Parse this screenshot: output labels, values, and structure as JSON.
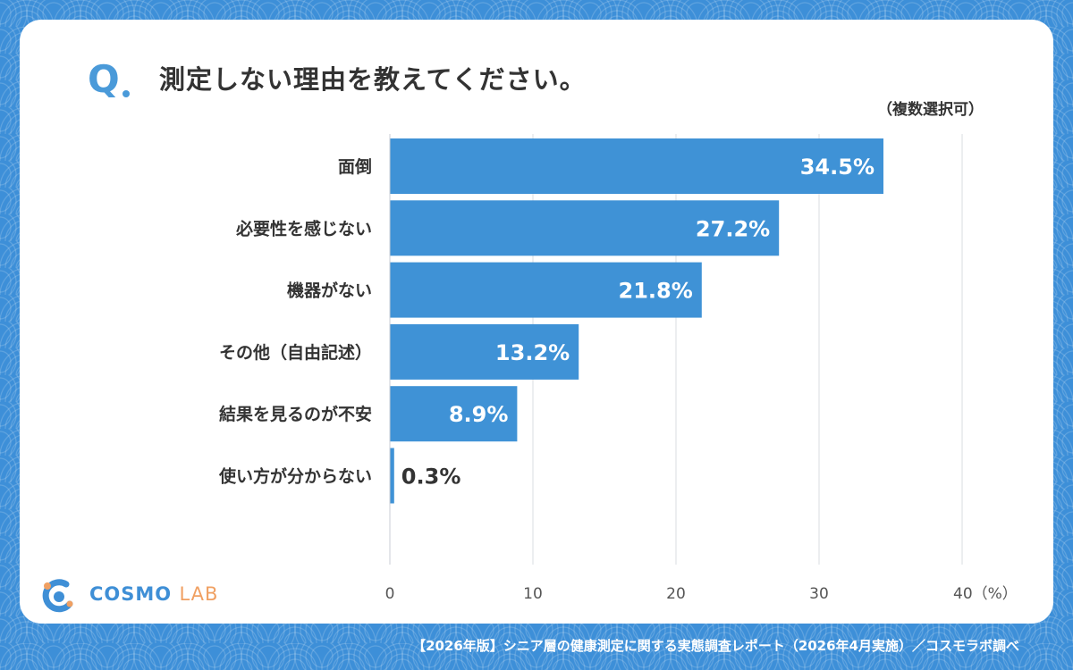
{
  "question": {
    "mark": "Q",
    "text": "測定しない理由を教えてください。",
    "note": "（複数選択可）"
  },
  "chart_data": {
    "type": "bar",
    "orientation": "horizontal",
    "categories": [
      "面倒",
      "必要性を感じない",
      "機器がない",
      "その他（自由記述）",
      "結果を見るのが不安",
      "使い方が分からない"
    ],
    "values": [
      34.5,
      27.2,
      21.8,
      13.2,
      8.9,
      0.3
    ],
    "value_labels": [
      "34.5%",
      "27.2%",
      "21.8%",
      "13.2%",
      "8.9%",
      "0.3%"
    ],
    "x_ticks": [
      "0",
      "10",
      "20",
      "30",
      "40（%）"
    ],
    "xlim": [
      0,
      40
    ],
    "grid": true,
    "bar_color": "#3f92d6"
  },
  "logo": {
    "brand": "COSMO",
    "suffix": "LAB"
  },
  "footer": "【2026年版】シニア層の健康測定に関する実態調査レポート（2026年4月実施）／コスモラボ調べ"
}
